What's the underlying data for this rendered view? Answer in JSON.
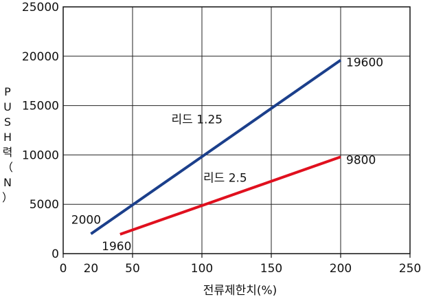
{
  "chart_data": {
    "type": "line",
    "xlabel": "전류제한치(%)",
    "ylabel": "PUSH력（N）",
    "xlim": [
      0,
      250
    ],
    "ylim": [
      0,
      25000
    ],
    "x_ticks": [
      0,
      20,
      50,
      100,
      150,
      200,
      250
    ],
    "y_ticks": [
      0,
      5000,
      10000,
      15000,
      20000,
      25000
    ],
    "grid": true,
    "series": [
      {
        "name": "리드 1.25",
        "color": "#1b3f8b",
        "x": [
          20,
          200
        ],
        "y": [
          2000,
          19600
        ],
        "point_labels": [
          "2000",
          "19600"
        ]
      },
      {
        "name": "리드 2.5",
        "color": "#e0101e",
        "x": [
          41,
          200
        ],
        "y": [
          1960,
          9800
        ],
        "point_labels": [
          "1960",
          "9800"
        ]
      }
    ]
  }
}
